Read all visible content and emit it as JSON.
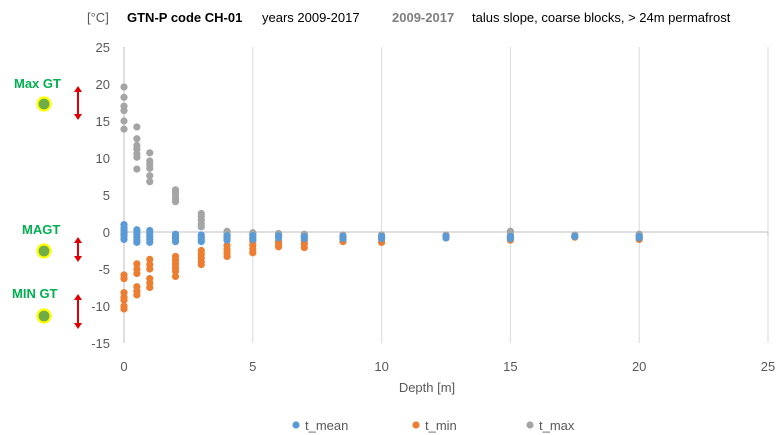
{
  "header": {
    "unit": "[°C]",
    "code": "GTN-P code CH-01",
    "years": "years 2009-2017",
    "period": "2009-2017",
    "description": "talus slope, coarse blocks, > 24m permafrost"
  },
  "side_labels": {
    "max": "Max GT",
    "mean": "MAGT",
    "min": "MIN GT"
  },
  "colors": {
    "t_mean": "#5b9bd5",
    "t_min": "#ed7d31",
    "t_max": "#a5a5a5",
    "marker_fill": "#70ad47",
    "marker_ring": "#ffff00",
    "arrow": "#e00000",
    "label": "#00b050"
  },
  "chart_data": {
    "type": "scatter",
    "xlabel": "Depth [m]",
    "ylabel": "[°C]",
    "xlim": [
      0,
      25
    ],
    "ylim": [
      -15,
      25
    ],
    "xticks": [
      0,
      5,
      10,
      15,
      20,
      25
    ],
    "yticks": [
      -15,
      -10,
      -5,
      0,
      5,
      10,
      15,
      20,
      25
    ],
    "grid": "vertical",
    "legend_position": "bottom",
    "series": [
      {
        "name": "t_mean",
        "points": [
          [
            0,
            1.0
          ],
          [
            0,
            0.6
          ],
          [
            0,
            0.3
          ],
          [
            0,
            0.0
          ],
          [
            0,
            -0.3
          ],
          [
            0,
            -0.6
          ],
          [
            0,
            -1.0
          ],
          [
            0.5,
            0.3
          ],
          [
            0.5,
            0.0
          ],
          [
            0.5,
            -0.3
          ],
          [
            0.5,
            -0.7
          ],
          [
            0.5,
            -1.1
          ],
          [
            0.5,
            -1.4
          ],
          [
            1,
            0.2
          ],
          [
            1,
            -0.2
          ],
          [
            1,
            -0.6
          ],
          [
            1,
            -1.0
          ],
          [
            1,
            -1.4
          ],
          [
            2,
            -0.3
          ],
          [
            2,
            -0.6
          ],
          [
            2,
            -0.9
          ],
          [
            2,
            -1.3
          ],
          [
            3,
            -0.4
          ],
          [
            3,
            -0.7
          ],
          [
            3,
            -1.0
          ],
          [
            3,
            -1.3
          ],
          [
            4,
            -0.5
          ],
          [
            4,
            -0.8
          ],
          [
            4,
            -1.1
          ],
          [
            5,
            -0.5
          ],
          [
            5,
            -0.8
          ],
          [
            5,
            -1.0
          ],
          [
            6,
            -0.5
          ],
          [
            6,
            -0.8
          ],
          [
            7,
            -0.6
          ],
          [
            7,
            -0.9
          ],
          [
            8.5,
            -0.6
          ],
          [
            8.5,
            -0.9
          ],
          [
            10,
            -0.6
          ],
          [
            10,
            -0.9
          ],
          [
            12.5,
            -0.6
          ],
          [
            12.5,
            -0.8
          ],
          [
            15,
            -0.6
          ],
          [
            15,
            -0.9
          ],
          [
            17.5,
            -0.6
          ],
          [
            20,
            -0.6
          ],
          [
            20,
            -0.8
          ]
        ]
      },
      {
        "name": "t_min",
        "points": [
          [
            0,
            -5.8
          ],
          [
            0,
            -6.3
          ],
          [
            0,
            -8.2
          ],
          [
            0,
            -8.8
          ],
          [
            0,
            -9.2
          ],
          [
            0,
            -10.0
          ],
          [
            0,
            -10.4
          ],
          [
            0.5,
            -4.3
          ],
          [
            0.5,
            -5.0
          ],
          [
            0.5,
            -5.6
          ],
          [
            0.5,
            -7.4
          ],
          [
            0.5,
            -8.0
          ],
          [
            0.5,
            -8.5
          ],
          [
            1,
            -3.7
          ],
          [
            1,
            -4.4
          ],
          [
            1,
            -5.0
          ],
          [
            1,
            -6.3
          ],
          [
            1,
            -6.9
          ],
          [
            1,
            -7.5
          ],
          [
            2,
            -3.3
          ],
          [
            2,
            -3.8
          ],
          [
            2,
            -4.3
          ],
          [
            2,
            -4.8
          ],
          [
            2,
            -5.3
          ],
          [
            2,
            -6.0
          ],
          [
            3,
            -2.5
          ],
          [
            3,
            -3.0
          ],
          [
            3,
            -3.5
          ],
          [
            3,
            -4.0
          ],
          [
            3,
            -4.4
          ],
          [
            4,
            -1.8
          ],
          [
            4,
            -2.3
          ],
          [
            4,
            -2.8
          ],
          [
            4,
            -3.3
          ],
          [
            5,
            -1.3
          ],
          [
            5,
            -1.8
          ],
          [
            5,
            -2.3
          ],
          [
            5,
            -2.8
          ],
          [
            6,
            -1.2
          ],
          [
            6,
            -1.6
          ],
          [
            6,
            -2.0
          ],
          [
            7,
            -1.2
          ],
          [
            7,
            -1.6
          ],
          [
            7,
            -2.1
          ],
          [
            8.5,
            -1.0
          ],
          [
            8.5,
            -1.3
          ],
          [
            10,
            -1.0
          ],
          [
            10,
            -1.4
          ],
          [
            12.5,
            -0.8
          ],
          [
            15,
            -0.9
          ],
          [
            15,
            -1.1
          ],
          [
            17.5,
            -0.7
          ],
          [
            20,
            -0.8
          ],
          [
            20,
            -1.0
          ]
        ]
      },
      {
        "name": "t_max",
        "points": [
          [
            0,
            19.6
          ],
          [
            0,
            18.2
          ],
          [
            0,
            17.0
          ],
          [
            0,
            16.4
          ],
          [
            0,
            15.0
          ],
          [
            0,
            13.9
          ],
          [
            0.5,
            14.2
          ],
          [
            0.5,
            12.6
          ],
          [
            0.5,
            11.7
          ],
          [
            0.5,
            11.2
          ],
          [
            0.5,
            10.6
          ],
          [
            0.5,
            10.1
          ],
          [
            0.5,
            8.5
          ],
          [
            1,
            10.7
          ],
          [
            1,
            9.6
          ],
          [
            1,
            9.1
          ],
          [
            1,
            8.6
          ],
          [
            1,
            7.6
          ],
          [
            1,
            6.8
          ],
          [
            2,
            5.7
          ],
          [
            2,
            5.3
          ],
          [
            2,
            4.8
          ],
          [
            2,
            4.4
          ],
          [
            2,
            4.1
          ],
          [
            3,
            2.5
          ],
          [
            3,
            2.1
          ],
          [
            3,
            1.6
          ],
          [
            3,
            1.1
          ],
          [
            3,
            0.7
          ],
          [
            4,
            0.1
          ],
          [
            4,
            -0.2
          ],
          [
            4,
            -0.5
          ],
          [
            5,
            -0.1
          ],
          [
            5,
            -0.3
          ],
          [
            6,
            -0.2
          ],
          [
            6,
            -0.4
          ],
          [
            7,
            -0.3
          ],
          [
            7,
            -0.5
          ],
          [
            8.5,
            -0.4
          ],
          [
            8.5,
            -0.6
          ],
          [
            10,
            -0.4
          ],
          [
            10,
            -0.6
          ],
          [
            12.5,
            -0.4
          ],
          [
            12.5,
            -0.6
          ],
          [
            15,
            0.1
          ],
          [
            15,
            -0.3
          ],
          [
            15,
            -0.6
          ],
          [
            17.5,
            -0.4
          ],
          [
            17.5,
            -0.6
          ],
          [
            20,
            -0.3
          ],
          [
            20,
            -0.5
          ]
        ]
      }
    ]
  }
}
